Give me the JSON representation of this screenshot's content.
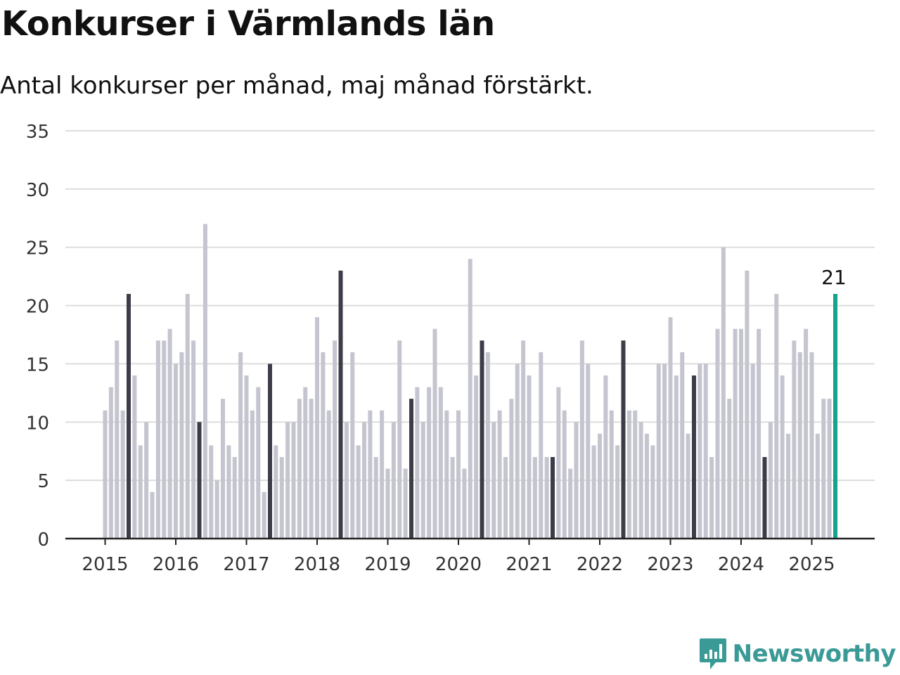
{
  "header": {
    "title": "Konkurser i Värmlands län",
    "subtitle": "Antal konkurser per månad, maj månad förstärkt."
  },
  "brand": {
    "name": "Newsworthy",
    "icon": "bar-chart-speech-bubble-icon"
  },
  "colors": {
    "bar": "#c5c5d0",
    "highlight": "#3d3d4a",
    "latest": "#14a38b",
    "grid": "#dddddd",
    "axis": "#222222",
    "brand": "#3a9a96"
  },
  "chart_data": {
    "type": "bar",
    "title": "Konkurser i Värmlands län",
    "subtitle": "Antal konkurser per månad, maj månad förstärkt.",
    "xlabel": "",
    "ylabel": "",
    "ylim": [
      0,
      35
    ],
    "yticks": [
      0,
      5,
      10,
      15,
      20,
      25,
      30,
      35
    ],
    "xticks": [
      "2015",
      "2016",
      "2017",
      "2018",
      "2019",
      "2020",
      "2021",
      "2022",
      "2023",
      "2024",
      "2025"
    ],
    "grid": true,
    "legend": "none",
    "highlight_month": "05",
    "latest_label": "21",
    "series": [
      {
        "months": [
          "2015-01",
          "2015-02",
          "2015-03",
          "2015-04",
          "2015-05",
          "2015-06",
          "2015-07",
          "2015-08",
          "2015-09",
          "2015-10",
          "2015-11",
          "2015-12",
          "2016-01",
          "2016-02",
          "2016-03",
          "2016-04",
          "2016-05",
          "2016-06",
          "2016-07",
          "2016-08",
          "2016-09",
          "2016-10",
          "2016-11",
          "2016-12",
          "2017-01",
          "2017-02",
          "2017-03",
          "2017-04",
          "2017-05",
          "2017-06",
          "2017-07",
          "2017-08",
          "2017-09",
          "2017-10",
          "2017-11",
          "2017-12",
          "2018-01",
          "2018-02",
          "2018-03",
          "2018-04",
          "2018-05",
          "2018-06",
          "2018-07",
          "2018-08",
          "2018-09",
          "2018-10",
          "2018-11",
          "2018-12",
          "2019-01",
          "2019-02",
          "2019-03",
          "2019-04",
          "2019-05",
          "2019-06",
          "2019-07",
          "2019-08",
          "2019-09",
          "2019-10",
          "2019-11",
          "2019-12",
          "2020-01",
          "2020-02",
          "2020-03",
          "2020-04",
          "2020-05",
          "2020-06",
          "2020-07",
          "2020-08",
          "2020-09",
          "2020-10",
          "2020-11",
          "2020-12",
          "2021-01",
          "2021-02",
          "2021-03",
          "2021-04",
          "2021-05",
          "2021-06",
          "2021-07",
          "2021-08",
          "2021-09",
          "2021-10",
          "2021-11",
          "2021-12",
          "2022-01",
          "2022-02",
          "2022-03",
          "2022-04",
          "2022-05",
          "2022-06",
          "2022-07",
          "2022-08",
          "2022-09",
          "2022-10",
          "2022-11",
          "2022-12",
          "2023-01",
          "2023-02",
          "2023-03",
          "2023-04",
          "2023-05",
          "2023-06",
          "2023-07",
          "2023-08",
          "2023-09",
          "2023-10",
          "2023-11",
          "2023-12",
          "2024-01",
          "2024-02",
          "2024-03",
          "2024-04",
          "2024-05",
          "2024-06",
          "2024-07",
          "2024-08",
          "2024-09",
          "2024-10",
          "2024-11",
          "2024-12",
          "2025-01",
          "2025-02",
          "2025-03",
          "2025-04",
          "2025-05"
        ],
        "values": [
          11,
          13,
          17,
          11,
          21,
          14,
          8,
          10,
          4,
          17,
          17,
          18,
          15,
          16,
          21,
          17,
          10,
          27,
          8,
          5,
          12,
          8,
          7,
          16,
          14,
          11,
          13,
          4,
          15,
          8,
          7,
          10,
          10,
          12,
          13,
          12,
          19,
          16,
          11,
          17,
          23,
          10,
          16,
          8,
          10,
          11,
          7,
          11,
          6,
          10,
          17,
          6,
          12,
          13,
          10,
          13,
          18,
          13,
          11,
          7,
          11,
          6,
          24,
          14,
          17,
          16,
          10,
          11,
          7,
          12,
          15,
          17,
          14,
          7,
          16,
          7,
          7,
          13,
          11,
          6,
          10,
          17,
          15,
          8,
          9,
          14,
          11,
          8,
          17,
          11,
          11,
          10,
          9,
          8,
          15,
          15,
          19,
          14,
          16,
          9,
          14,
          15,
          15,
          7,
          18,
          25,
          12,
          18,
          18,
          23,
          15,
          18,
          7,
          10,
          21,
          14,
          9,
          17,
          16,
          18,
          16,
          9,
          12,
          12,
          21
        ]
      }
    ]
  }
}
